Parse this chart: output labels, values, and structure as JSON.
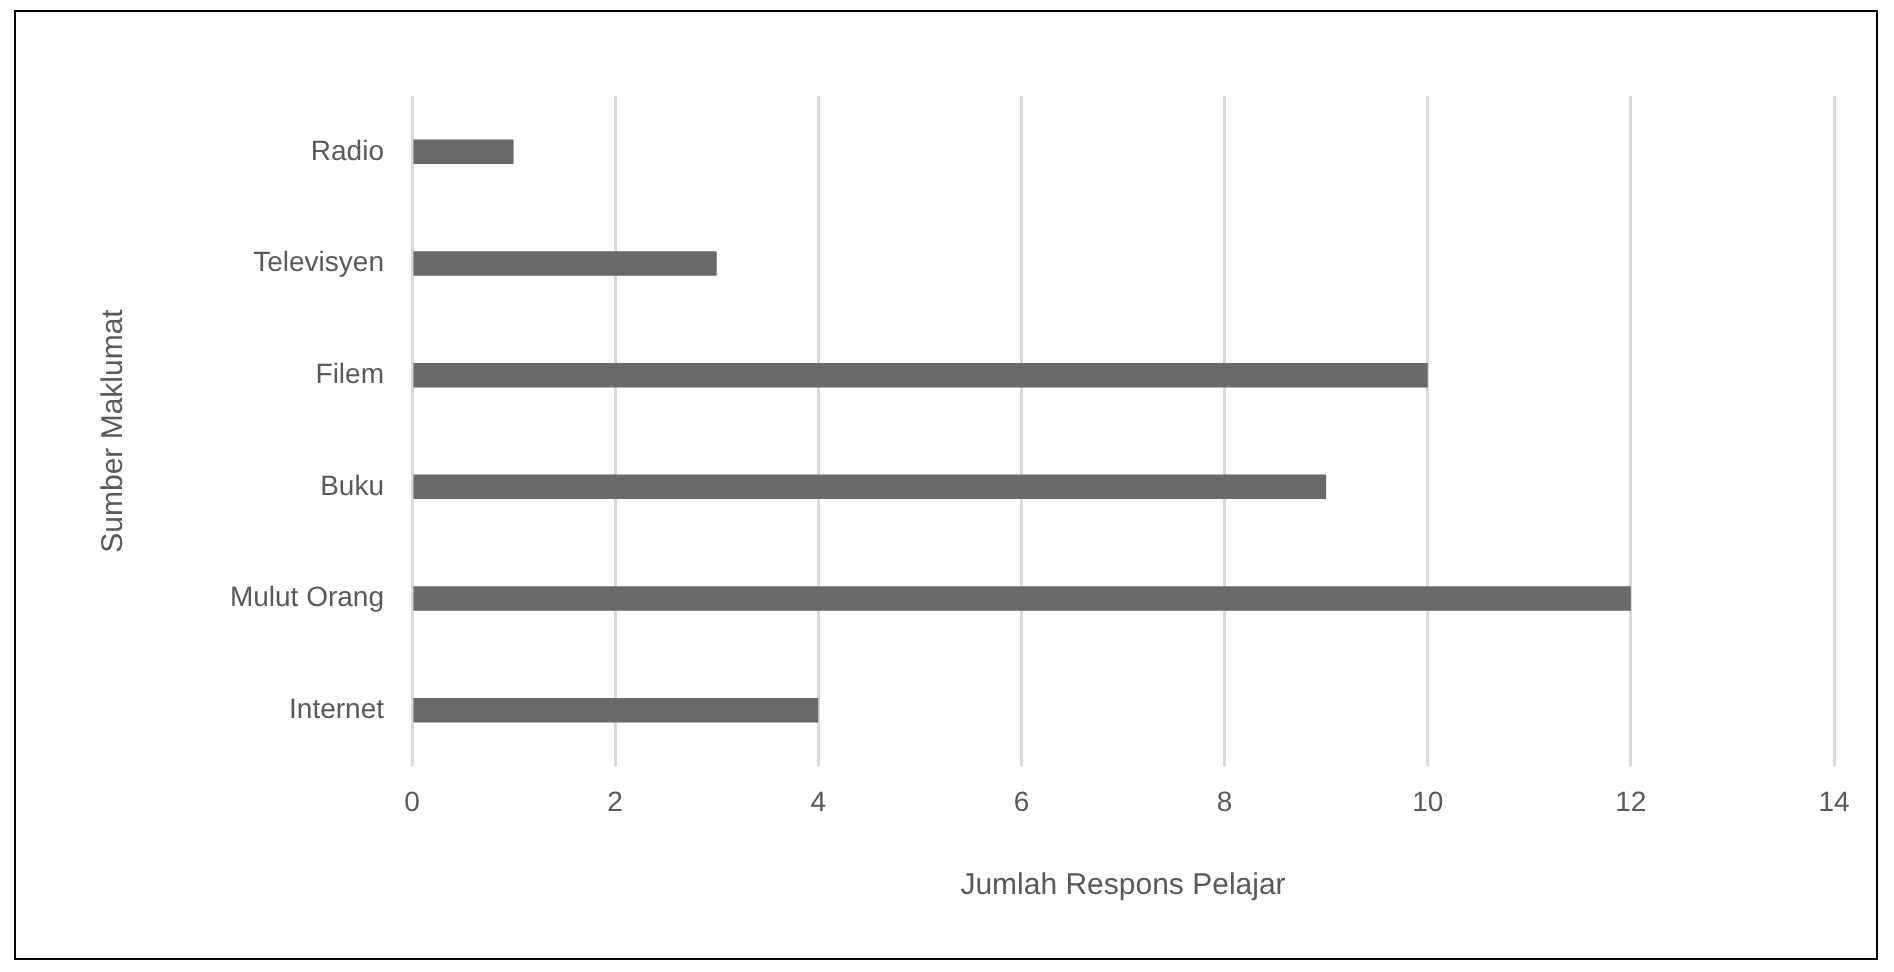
{
  "chart_data": {
    "type": "bar",
    "orientation": "horizontal",
    "xlabel": "Jumlah Respons Pelajar",
    "ylabel": "Sumber Maklumat",
    "categories": [
      "Radio",
      "Televisyen",
      "Filem",
      "Buku",
      "Mulut Orang",
      "Internet"
    ],
    "values": [
      1,
      3,
      10,
      9,
      12,
      4
    ],
    "color": "#696969",
    "xlim": [
      0,
      14
    ],
    "xticks": [
      0,
      2,
      4,
      6,
      8,
      10,
      12,
      14
    ],
    "grid": "x",
    "legend": false
  }
}
